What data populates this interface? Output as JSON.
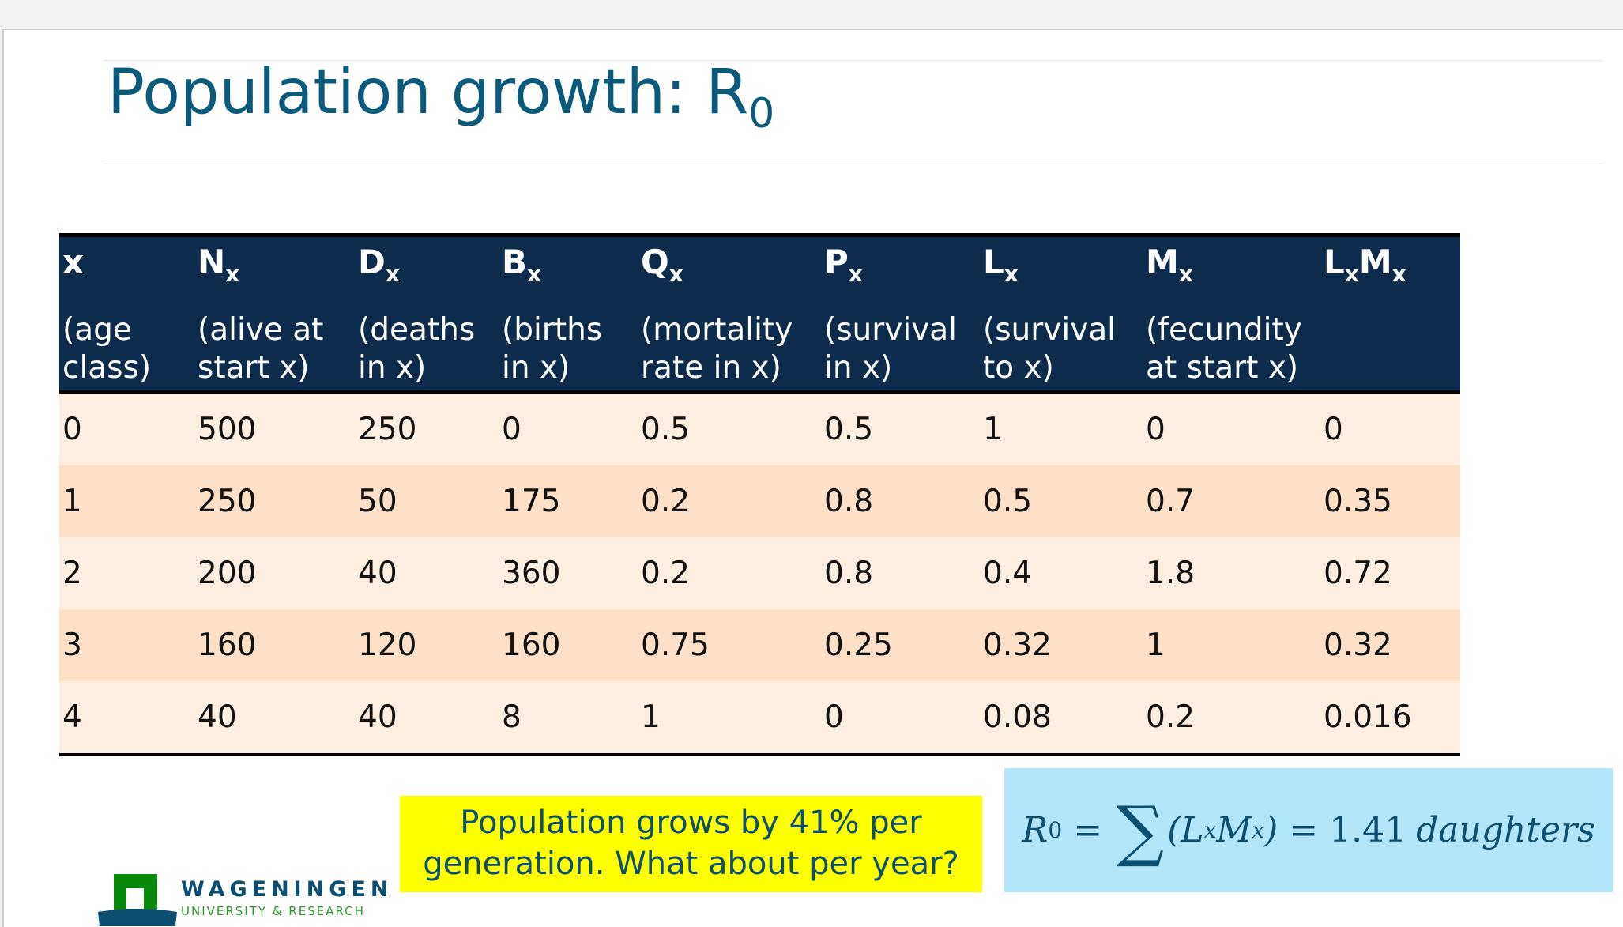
{
  "title": {
    "main": "Population growth: R",
    "sub": "0"
  },
  "table": {
    "headers": [
      {
        "sym": "x",
        "sub": "",
        "desc": "(age class)"
      },
      {
        "sym": "N",
        "sub": "x",
        "desc": "(alive at start x)"
      },
      {
        "sym": "D",
        "sub": "x",
        "desc": "(deaths in x)"
      },
      {
        "sym": "B",
        "sub": "x",
        "desc": "(births in x)"
      },
      {
        "sym": "Q",
        "sub": "x",
        "desc": "(mortality rate in x)"
      },
      {
        "sym": "P",
        "sub": "x",
        "desc": "(survival in x)"
      },
      {
        "sym": "L",
        "sub": "x",
        "desc": "(survival to x)"
      },
      {
        "sym": "M",
        "sub": "x",
        "desc": "(fecundity at start x)"
      },
      {
        "sym": "L",
        "sub": "x",
        "sym2": "M",
        "sub2": "x",
        "desc": ""
      }
    ],
    "rows": [
      [
        "0",
        "500",
        "250",
        "0",
        "0.5",
        "0.5",
        "1",
        "0",
        "0"
      ],
      [
        "1",
        "250",
        "50",
        "175",
        "0.2",
        "0.8",
        "0.5",
        "0.7",
        "0.35"
      ],
      [
        "2",
        "200",
        "40",
        "360",
        "0.2",
        "0.8",
        "0.4",
        "1.8",
        "0.72"
      ],
      [
        "3",
        "160",
        "120",
        "160",
        "0.75",
        "0.25",
        "0.32",
        "1",
        "0.32"
      ],
      [
        "4",
        "40",
        "40",
        "8",
        "1",
        "0",
        "0.08",
        "0.2",
        "0.016"
      ]
    ]
  },
  "callout": {
    "text_line1": "Population grows by 41% per",
    "text_line2": "generation. What about per year?"
  },
  "formula": {
    "lhs": "R",
    "lhs_sub": "0",
    "eq": "=",
    "sigma": "∑",
    "term_open": "(L",
    "x1": "x",
    "m": "M",
    "x2": "x",
    "term_close": ")",
    "eq2": "=",
    "value": "1.41",
    "unit": "daughters"
  },
  "logo": {
    "name": "WAGENINGEN",
    "subtitle": "UNIVERSITY & RESEARCH"
  },
  "colors": {
    "header_bg": "#0c2b4d",
    "row_light": "#fdeee2",
    "row_dark": "#fde0c6",
    "callout_bg": "#ffff00",
    "formula_bg": "#b3e6fb",
    "title": "#0a5a7c"
  }
}
